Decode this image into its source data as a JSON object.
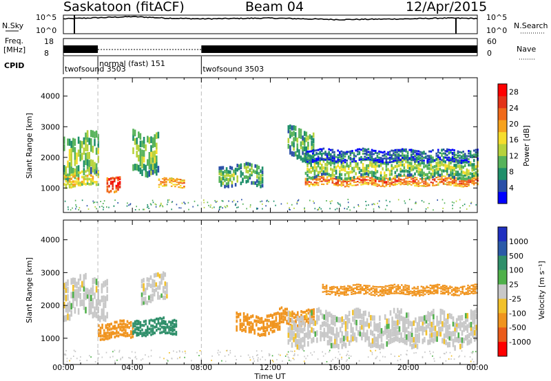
{
  "header": {
    "station": "Saskatoon (fitACF)",
    "beam": "Beam 04",
    "date": "12/Apr/2015"
  },
  "noise_panel": {
    "left_label": "N.Sky",
    "right_label": "N.Search",
    "left_ticks": [
      "10^5",
      "10^0"
    ],
    "right_ticks": [
      "10^5",
      "10^0"
    ]
  },
  "freq_panel": {
    "left_label_line1": "Freq.",
    "left_label_line2": "[MHz]",
    "right_label": "Nave",
    "left_ticks": [
      "18",
      "8"
    ],
    "right_ticks": [
      "60",
      "0"
    ]
  },
  "cpid": {
    "label": "CPID",
    "segments": [
      {
        "name": "twofsound 3503",
        "start_h": 0,
        "end_h": 2
      },
      {
        "name": "normal (fast) 151",
        "start_h": 2,
        "end_h": 8
      },
      {
        "name": "twofsound 3503",
        "start_h": 8,
        "end_h": 24
      }
    ]
  },
  "power_colorbar": {
    "label": "Power [dB]",
    "ticks": [
      "28",
      "24",
      "20",
      "16",
      "12",
      "8",
      "4"
    ],
    "colors": [
      "#0000ff",
      "#2a4fa8",
      "#1f8f6a",
      "#57b35a",
      "#b7d23c",
      "#f6dd2c",
      "#f6a21e",
      "#f06a1a",
      "#e33319",
      "#ff0000"
    ]
  },
  "velocity_colorbar": {
    "label": "Velocity [m s⁻¹]",
    "ticks": [
      "1000",
      "500",
      "100",
      "25",
      "-25",
      "-100",
      "-500",
      "-1000"
    ],
    "colors": [
      "#2030c0",
      "#2a5aa8",
      "#2f8f6a",
      "#4fb04a",
      "#c8c8c8",
      "#f2c12a",
      "#f0941e",
      "#ea5b1a",
      "#ff0000"
    ]
  },
  "chart_data": {
    "type": "heatmap",
    "xlabel": "Time UT",
    "ylabel": "Slant Range [km]",
    "x_ticks": [
      "00:00",
      "04:00",
      "08:00",
      "12:00",
      "16:00",
      "20:00",
      "00:00"
    ],
    "x_range_hours": [
      0,
      24
    ],
    "y_ticks": [
      1000,
      2000,
      3000,
      4000
    ],
    "y_range_km": [
      200,
      4600
    ],
    "mode_changes_h": [
      2,
      8
    ],
    "panels": [
      {
        "name": "power",
        "quantity": "Power [dB]",
        "bands": [
          {
            "t_start_h": 0.0,
            "t_end_h": 2.0,
            "range_center_km": 2200,
            "range_width_km": 1400,
            "value": 14
          },
          {
            "t_start_h": 0.0,
            "t_end_h": 2.0,
            "range_center_km": 1350,
            "range_width_km": 500,
            "value": 18
          },
          {
            "t_start_h": 2.5,
            "t_end_h": 3.3,
            "range_center_km": 1200,
            "range_width_km": 500,
            "value": 28
          },
          {
            "t_start_h": 4.0,
            "t_end_h": 5.5,
            "range_center_km": 2300,
            "range_width_km": 1300,
            "value": 14
          },
          {
            "t_start_h": 5.5,
            "t_end_h": 7.0,
            "range_center_km": 1200,
            "range_width_km": 300,
            "value": 22
          },
          {
            "t_start_h": 9.0,
            "t_end_h": 11.5,
            "range_center_km": 1500,
            "range_width_km": 700,
            "value": 12
          },
          {
            "t_start_h": 13.0,
            "t_end_h": 14.5,
            "range_center_km": 2600,
            "range_width_km": 1000,
            "value": 12
          },
          {
            "t_start_h": 14.0,
            "t_end_h": 24.0,
            "range_center_km": 1250,
            "range_width_km": 300,
            "value": 24
          },
          {
            "t_start_h": 14.0,
            "t_end_h": 24.0,
            "range_center_km": 1700,
            "range_width_km": 600,
            "value": 14
          },
          {
            "t_start_h": 14.0,
            "t_end_h": 24.0,
            "range_center_km": 2100,
            "range_width_km": 400,
            "value": 8
          }
        ]
      },
      {
        "name": "velocity",
        "quantity": "Velocity [m s⁻¹]",
        "bands": [
          {
            "t_start_h": 0.0,
            "t_end_h": 2.5,
            "range_center_km": 2400,
            "range_width_km": 1200,
            "value": 0
          },
          {
            "t_start_h": 2.0,
            "t_end_h": 4.0,
            "range_center_km": 1300,
            "range_width_km": 500,
            "value": -300
          },
          {
            "t_start_h": 4.0,
            "t_end_h": 6.5,
            "range_center_km": 1400,
            "range_width_km": 500,
            "value": 150
          },
          {
            "t_start_h": 4.5,
            "t_end_h": 6.0,
            "range_center_km": 2600,
            "range_width_km": 800,
            "value": 0
          },
          {
            "t_start_h": 10.0,
            "t_end_h": 12.5,
            "range_center_km": 1500,
            "range_width_km": 600,
            "value": -300
          },
          {
            "t_start_h": 12.5,
            "t_end_h": 14.5,
            "range_center_km": 1700,
            "range_width_km": 500,
            "value": -400
          },
          {
            "t_start_h": 13.0,
            "t_end_h": 24.0,
            "range_center_km": 1400,
            "range_width_km": 1000,
            "value": 0
          },
          {
            "t_start_h": 15.0,
            "t_end_h": 24.0,
            "range_center_km": 2500,
            "range_width_km": 300,
            "value": -150
          }
        ]
      }
    ],
    "noise_series_log10": {
      "x_h": [
        0,
        2,
        4,
        6,
        8,
        10,
        12,
        14,
        16,
        18,
        20,
        22,
        24
      ],
      "n_sky": [
        4.0,
        4.3,
        4.6,
        4.2,
        4.0,
        4.1,
        4.2,
        4.0,
        3.8,
        3.9,
        4.0,
        4.2,
        4.1
      ]
    },
    "frequency_mhz": {
      "x_h": [
        0,
        2,
        2,
        8,
        8,
        24
      ],
      "values": [
        11,
        11,
        13,
        13,
        11,
        11
      ]
    }
  }
}
